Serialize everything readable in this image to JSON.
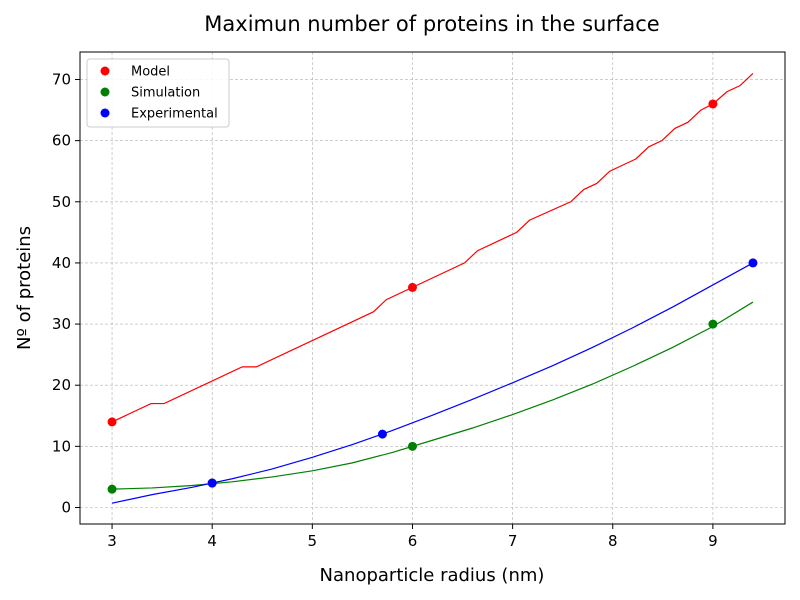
{
  "chart_data": {
    "type": "scatter",
    "title": "Maximun number of proteins in the surface",
    "xlabel": "Nanoparticle radius (nm)",
    "ylabel": "Nº of proteins",
    "xlim": [
      2.68,
      9.72
    ],
    "ylim": [
      -2.7,
      74.5
    ],
    "xticks": [
      3,
      4,
      5,
      6,
      7,
      8,
      9
    ],
    "yticks": [
      0,
      10,
      20,
      30,
      40,
      50,
      60,
      70
    ],
    "grid": true,
    "legend_position": "top-left",
    "series": [
      {
        "name": "Model",
        "color": "#ff0000",
        "points": [
          [
            3,
            14
          ],
          [
            6,
            36
          ],
          [
            9,
            66
          ]
        ],
        "curve": [
          [
            3.0,
            14
          ],
          [
            3.39,
            17
          ],
          [
            3.52,
            17
          ],
          [
            4.3,
            23
          ],
          [
            4.44,
            23
          ],
          [
            5.61,
            32
          ],
          [
            5.74,
            34
          ],
          [
            6.0,
            36
          ],
          [
            6.52,
            40
          ],
          [
            6.65,
            42
          ],
          [
            7.04,
            45
          ],
          [
            7.17,
            47
          ],
          [
            7.58,
            50
          ],
          [
            7.71,
            52
          ],
          [
            7.84,
            53
          ],
          [
            7.97,
            55
          ],
          [
            8.23,
            57
          ],
          [
            8.36,
            59
          ],
          [
            8.49,
            60
          ],
          [
            8.62,
            62
          ],
          [
            8.75,
            63
          ],
          [
            8.88,
            65
          ],
          [
            9.0,
            66
          ],
          [
            9.14,
            68
          ],
          [
            9.27,
            69
          ],
          [
            9.4,
            71
          ]
        ]
      },
      {
        "name": "Simulation",
        "color": "#008000",
        "points": [
          [
            3,
            3
          ],
          [
            4,
            4
          ],
          [
            6,
            10
          ],
          [
            9,
            30
          ]
        ],
        "curve": [
          [
            3.0,
            3.0
          ],
          [
            3.4,
            3.2
          ],
          [
            3.8,
            3.6
          ],
          [
            4.2,
            4.2
          ],
          [
            4.6,
            5.0
          ],
          [
            5.0,
            6.0
          ],
          [
            5.4,
            7.3
          ],
          [
            5.8,
            9.0
          ],
          [
            6.2,
            11.0
          ],
          [
            6.6,
            13.0
          ],
          [
            7.0,
            15.2
          ],
          [
            7.4,
            17.6
          ],
          [
            7.8,
            20.2
          ],
          [
            8.2,
            23.1
          ],
          [
            8.6,
            26.2
          ],
          [
            9.0,
            29.6
          ],
          [
            9.4,
            33.6
          ]
        ]
      },
      {
        "name": "Experimental",
        "color": "#0000ff",
        "points": [
          [
            4,
            4
          ],
          [
            5.7,
            12
          ],
          [
            9.4,
            40
          ]
        ],
        "curve": [
          [
            3.0,
            0.7
          ],
          [
            3.4,
            2.1
          ],
          [
            3.8,
            3.3
          ],
          [
            4.2,
            4.7
          ],
          [
            4.6,
            6.3
          ],
          [
            5.0,
            8.2
          ],
          [
            5.4,
            10.3
          ],
          [
            5.8,
            12.6
          ],
          [
            6.2,
            15.1
          ],
          [
            6.6,
            17.7
          ],
          [
            7.0,
            20.4
          ],
          [
            7.4,
            23.2
          ],
          [
            7.8,
            26.2
          ],
          [
            8.2,
            29.4
          ],
          [
            8.6,
            32.8
          ],
          [
            9.0,
            36.4
          ],
          [
            9.4,
            40.0
          ]
        ]
      }
    ]
  }
}
